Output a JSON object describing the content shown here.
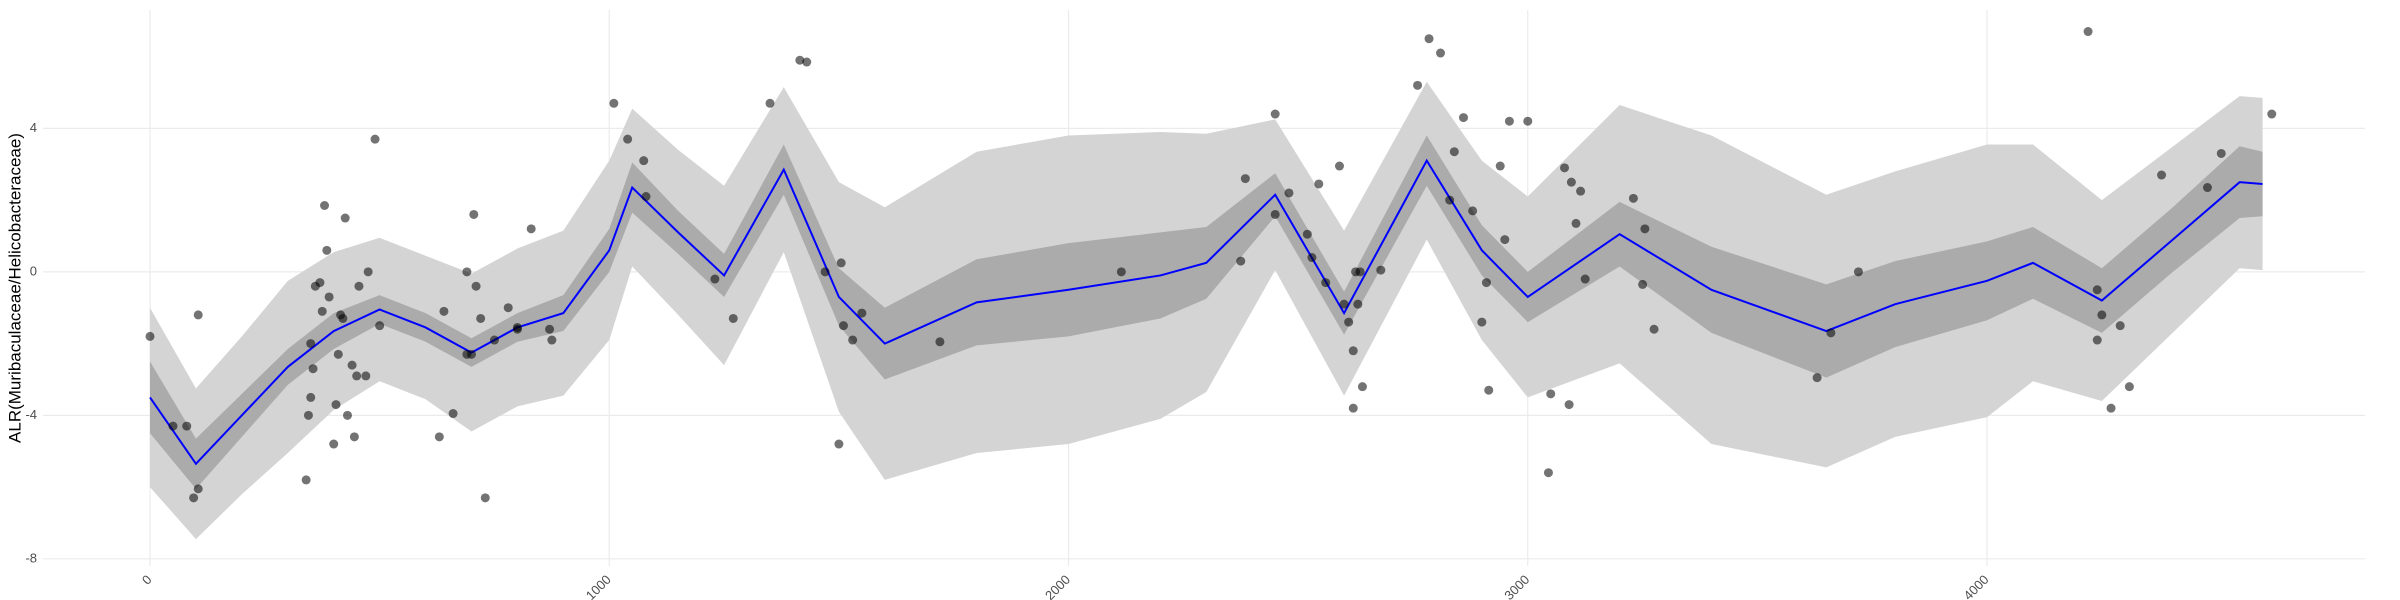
{
  "chart_data": {
    "type": "line",
    "y_label": "ALR(Muribaculaceae/Helicobacteraceae)",
    "xlim": [
      -233,
      4823
    ],
    "ylim": [
      -8.2,
      7.3
    ],
    "xticks": [
      0,
      1000,
      2000,
      3000,
      4000
    ],
    "yticks": [
      -8,
      -4,
      0,
      4
    ],
    "grid": true,
    "x": [
      0,
      100,
      200,
      300,
      400,
      500,
      600,
      700,
      800,
      900,
      1000,
      1050,
      1150,
      1250,
      1380,
      1500,
      1600,
      1800,
      2000,
      2200,
      2300,
      2450,
      2600,
      2780,
      2900,
      3000,
      3200,
      3400,
      3650,
      3800,
      4000,
      4100,
      4250,
      4400,
      4550,
      4600
    ],
    "line": {
      "color": "#0000ff",
      "values": [
        -3.5,
        -5.35,
        -4,
        -2.65,
        -1.65,
        -1.05,
        -1.55,
        -2.25,
        -1.55,
        -1.15,
        0.6,
        2.35,
        1.1,
        -0.1,
        2.85,
        -0.7,
        -2.0,
        -0.85,
        -0.5,
        -0.1,
        0.25,
        2.15,
        -1.15,
        3.1,
        0.6,
        -0.7,
        1.05,
        -0.5,
        -1.65,
        -0.9,
        -0.25,
        0.25,
        -0.8,
        0.85,
        2.5,
        2.45
      ]
    },
    "band_outer": {
      "color": "#d4d4d4",
      "lower": [
        -6.0,
        -7.45,
        -6.2,
        -5.05,
        -3.85,
        -3.05,
        -3.55,
        -4.45,
        -3.75,
        -3.45,
        -1.9,
        0.15,
        -1.2,
        -2.6,
        0.55,
        -3.9,
        -5.8,
        -5.05,
        -4.8,
        -4.1,
        -3.35,
        0.05,
        -3.45,
        0.9,
        -1.9,
        -3.5,
        -2.55,
        -4.8,
        -5.45,
        -4.6,
        -4.05,
        -3.05,
        -3.6,
        -1.75,
        0.1,
        0.05
      ],
      "upper": [
        -1.0,
        -3.25,
        -1.8,
        -0.25,
        0.55,
        0.95,
        0.45,
        -0.05,
        0.65,
        1.15,
        3.1,
        4.55,
        3.4,
        2.4,
        5.15,
        2.5,
        1.8,
        3.35,
        3.8,
        3.9,
        3.85,
        4.25,
        1.15,
        5.3,
        3.1,
        2.1,
        4.65,
        3.8,
        2.15,
        2.8,
        3.55,
        3.55,
        2.0,
        3.45,
        4.9,
        4.85
      ]
    },
    "band_inner": {
      "color": "#ababab",
      "lower": [
        -4.5,
        -6.05,
        -4.6,
        -3.15,
        -2.15,
        -1.45,
        -1.95,
        -2.65,
        -1.95,
        -1.65,
        0,
        1.65,
        0.5,
        -0.7,
        2.15,
        -1.5,
        -3.0,
        -2.05,
        -1.8,
        -1.3,
        -0.75,
        1.55,
        -1.75,
        2.4,
        -0.1,
        -1.4,
        0.15,
        -1.7,
        -2.95,
        -2.1,
        -1.35,
        -0.75,
        -1.7,
        -0.05,
        1.5,
        1.55
      ],
      "upper": [
        -2.5,
        -4.65,
        -3.4,
        -2.15,
        -1.15,
        -0.65,
        -1.15,
        -1.85,
        -1.15,
        -0.65,
        1.2,
        3.05,
        1.7,
        0.5,
        3.55,
        0.1,
        -1.0,
        0.35,
        0.8,
        1.1,
        1.25,
        2.75,
        -0.55,
        3.8,
        1.3,
        0.0,
        1.95,
        0.7,
        -0.35,
        0.3,
        0.85,
        1.25,
        0.1,
        1.75,
        3.5,
        3.35
      ]
    },
    "points": {
      "color": "#000000",
      "x": [
        0,
        50,
        80,
        95,
        105,
        105,
        340,
        345,
        350,
        355,
        350,
        360,
        370,
        375,
        380,
        385,
        390,
        400,
        405,
        410,
        415,
        420,
        425,
        430,
        440,
        445,
        450,
        455,
        470,
        475,
        490,
        500,
        630,
        640,
        660,
        690,
        690,
        700,
        705,
        710,
        720,
        730,
        750,
        780,
        800,
        800,
        830,
        870,
        875,
        1010,
        1040,
        1075,
        1080,
        1230,
        1270,
        1350,
        1415,
        1430,
        1470,
        1500,
        1505,
        1510,
        1530,
        1550,
        1720,
        2115,
        2375,
        2385,
        2450,
        2450,
        2480,
        2520,
        2530,
        2545,
        2560,
        2600,
        2590,
        2610,
        2620,
        2630,
        2620,
        2640,
        2625,
        2635,
        2680,
        2760,
        2785,
        2810,
        2830,
        2840,
        2860,
        2880,
        2900,
        2910,
        2915,
        2940,
        2950,
        2960,
        3000,
        3045,
        3050,
        3080,
        3090,
        3095,
        3105,
        3115,
        3125,
        3230,
        3250,
        3255,
        3275,
        3630,
        3660,
        3720,
        4220,
        4240,
        4250,
        4240,
        4270,
        4290,
        4310,
        4380,
        4480,
        4510,
        4620
      ],
      "y": [
        -1.8,
        -4.3,
        -4.3,
        -6.3,
        -6.05,
        -1.2,
        -5.8,
        -4,
        -3.5,
        -2.7,
        -2,
        -0.4,
        -0.3,
        -1.1,
        1.85,
        0.6,
        -0.7,
        -4.8,
        -3.7,
        -2.3,
        -1.2,
        -1.3,
        1.5,
        -4,
        -2.6,
        -4.6,
        -2.9,
        -0.4,
        -2.9,
        0,
        3.7,
        -1.5,
        -4.6,
        -1.1,
        -3.95,
        -2.3,
        0,
        -2.3,
        1.6,
        -0.4,
        -1.3,
        -6.3,
        -1.9,
        -1,
        -1.55,
        -1.6,
        1.2,
        -1.6,
        -1.9,
        4.7,
        3.7,
        3.1,
        2.1,
        -0.2,
        -1.3,
        4.7,
        5.9,
        5.85,
        0,
        -4.8,
        0.25,
        -1.5,
        -1.9,
        -1.15,
        -1.95,
        0,
        0.3,
        2.6,
        1.6,
        4.4,
        2.2,
        1.05,
        0.4,
        2.45,
        -0.3,
        -0.9,
        2.95,
        -1.4,
        -2.2,
        -0.9,
        -3.8,
        -3.2,
        0,
        0,
        0.05,
        5.2,
        6.5,
        6.1,
        2.0,
        3.35,
        4.3,
        1.7,
        -1.4,
        -0.3,
        -3.3,
        2.95,
        0.9,
        4.2,
        4.2,
        -5.6,
        -3.4,
        2.9,
        -3.7,
        2.5,
        1.35,
        2.25,
        -0.2,
        2.05,
        -0.35,
        1.2,
        -1.6,
        -2.95,
        -1.7,
        0,
        6.7,
        -0.5,
        -1.2,
        -1.9,
        -3.8,
        -1.5,
        -3.2,
        2.7,
        2.35,
        3.3,
        4.4
      ]
    }
  }
}
